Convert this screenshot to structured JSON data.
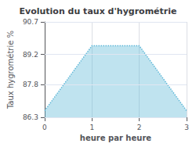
{
  "chart_data": {
    "type": "area",
    "title": "Evolution du taux d'hygrométrie",
    "xlabel": "heure par heure",
    "ylabel": "Taux hygrométrie %",
    "x": [
      0,
      1,
      2,
      3
    ],
    "values": [
      86.6,
      89.6,
      89.6,
      86.6
    ],
    "xlim": [
      0,
      3
    ],
    "ylim": [
      86.3,
      90.7
    ],
    "xticks": [
      0,
      1,
      2,
      3
    ],
    "yticks": [
      86.3,
      87.8,
      89.2,
      90.7
    ],
    "grid": true,
    "color": "#60b8d8",
    "line_style": "dotted"
  }
}
